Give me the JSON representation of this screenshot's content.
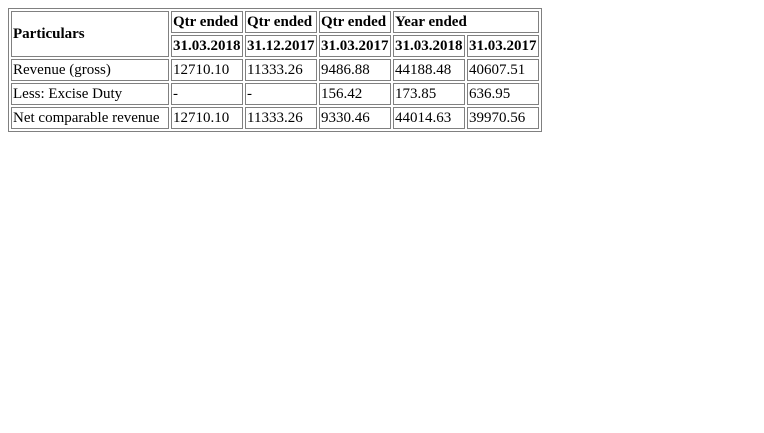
{
  "table": {
    "header": {
      "particulars": "Particulars",
      "group_labels": [
        "Qtr ended",
        "Qtr ended",
        "Qtr ended",
        "Year ended"
      ],
      "dates": [
        "31.03.2018",
        "31.12.2017",
        "31.03.2017",
        "31.03.2018",
        "31.03.2017"
      ]
    },
    "rows": [
      {
        "label": "Revenue (gross)",
        "values": [
          "12710.10",
          "11333.26",
          "9486.88",
          "44188.48",
          "40607.51"
        ]
      },
      {
        "label": "Less: Excise Duty",
        "values": [
          "-",
          "-",
          "156.42",
          "173.85",
          "636.95"
        ]
      },
      {
        "label": "Net comparable revenue",
        "values": [
          "12710.10",
          "11333.26",
          "9330.46",
          "44014.63",
          "39970.56"
        ]
      }
    ]
  }
}
